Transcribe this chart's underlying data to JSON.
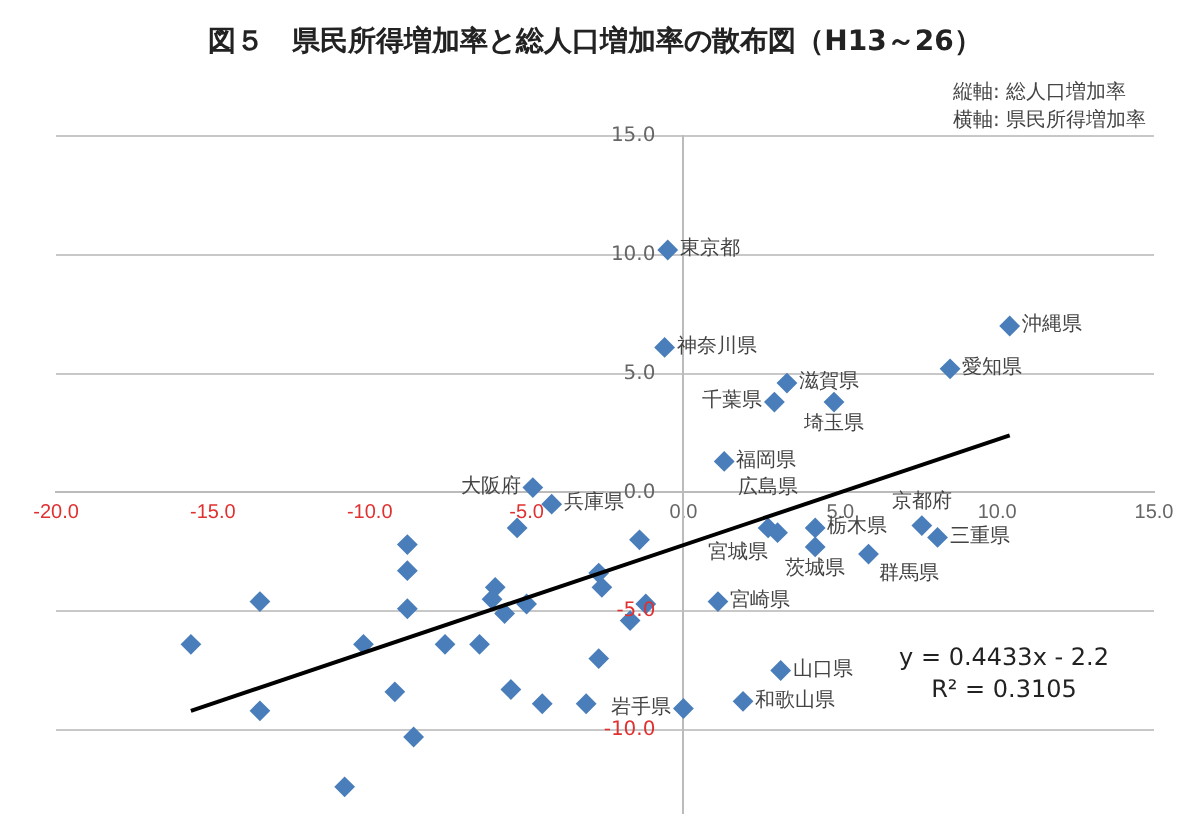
{
  "chart_data": {
    "type": "scatter",
    "title": "図５　県民所得増加率と総人口増加率の散布図（H13～26）",
    "ylabel": "縦軸: 総人口増加率",
    "xlabel": "横軸: 県民所得増加率",
    "xlim": [
      -20,
      15
    ],
    "ylim": [
      -13.5,
      15
    ],
    "xticks": [
      {
        "value": -20,
        "label": "-20.0"
      },
      {
        "value": -15,
        "label": "-15.0"
      },
      {
        "value": -10,
        "label": "-10.0"
      },
      {
        "value": -5,
        "label": "-5.0"
      },
      {
        "value": 0,
        "label": "0.0"
      },
      {
        "value": 5,
        "label": "5.0"
      },
      {
        "value": 10,
        "label": "10.0"
      },
      {
        "value": 15,
        "label": "15.0"
      }
    ],
    "yticks": [
      {
        "value": -10,
        "label": "-10.0"
      },
      {
        "value": -5,
        "label": "-5.0"
      },
      {
        "value": 0,
        "label": "0.0"
      },
      {
        "value": 5,
        "label": "5.0"
      },
      {
        "value": 10,
        "label": "10.0"
      },
      {
        "value": 15,
        "label": "15.0"
      }
    ],
    "grid": "y",
    "legend": false,
    "marker": "diamond",
    "series": [
      {
        "color": "#4a7ebb",
        "x": [
          -0.5,
          -0.6,
          3.3,
          2.9,
          4.8,
          1.3,
          8.5,
          10.4,
          -4.8,
          -4.2,
          -5.3,
          -8.8,
          -8.8,
          -13.5,
          -8.8,
          -6.0,
          -6.1,
          -5.7,
          -5.0,
          -15.7,
          -10.2,
          -7.6,
          -6.5,
          -9.2,
          -5.5,
          -4.5,
          -3.1,
          -13.5,
          -8.6,
          -10.8,
          -1.4,
          2.7,
          3.0,
          4.2,
          4.2,
          5.9,
          7.6,
          8.1,
          1.1,
          3.1,
          1.9,
          0.0,
          -2.6,
          -2.7,
          -1.2,
          -1.7,
          -2.7
        ],
        "values": [
          10.2,
          6.1,
          4.6,
          3.8,
          3.8,
          1.3,
          5.2,
          7.0,
          0.2,
          -0.5,
          -1.5,
          -2.2,
          -3.3,
          -4.6,
          -4.9,
          -4.0,
          -4.5,
          -5.1,
          -4.7,
          -6.4,
          -6.4,
          -6.4,
          -6.4,
          -8.4,
          -8.3,
          -8.9,
          -8.9,
          -9.2,
          -10.3,
          -12.4,
          -2.0,
          -1.5,
          -1.7,
          -1.5,
          -2.3,
          -2.6,
          -1.4,
          -1.9,
          -4.6,
          -7.5,
          -8.8,
          -9.1,
          -4.0,
          -3.4,
          -4.7,
          -5.4,
          -7.0
        ]
      },
      {
        "type": "line",
        "color": "#000000",
        "marker": "none",
        "x": [
          -15.7,
          10.4
        ],
        "values": [
          -9.2,
          2.4
        ]
      }
    ],
    "annotations": [
      {
        "text": "東京都",
        "x": -0.5,
        "y": 10.2
      },
      {
        "text": "神奈川県",
        "x": -0.6,
        "y": 6.1
      },
      {
        "text": "滋賀県",
        "x": 3.3,
        "y": 4.6
      },
      {
        "text": "千葉県",
        "x": 2.9,
        "y": 3.8
      },
      {
        "text": "埼玉県",
        "x": 4.8,
        "y": 3.8
      },
      {
        "text": "福岡県",
        "x": 1.3,
        "y": 1.3
      },
      {
        "text": "愛知県",
        "x": 8.5,
        "y": 5.2
      },
      {
        "text": "沖縄県",
        "x": 10.4,
        "y": 7.0
      },
      {
        "text": "大阪府",
        "x": -4.8,
        "y": 0.2
      },
      {
        "text": "兵庫県",
        "x": -4.2,
        "y": -0.5
      },
      {
        "text": "広島県",
        "x": 2.7,
        "y": -1.5
      },
      {
        "text": "宮城県",
        "x": 3.0,
        "y": -1.7
      },
      {
        "text": "栃木県",
        "x": 4.2,
        "y": -1.5
      },
      {
        "text": "茨城県",
        "x": 4.2,
        "y": -2.3
      },
      {
        "text": "群馬県",
        "x": 5.9,
        "y": -2.6
      },
      {
        "text": "京都府",
        "x": 7.6,
        "y": -1.4
      },
      {
        "text": "三重県",
        "x": 8.1,
        "y": -1.9
      },
      {
        "text": "宮崎県",
        "x": 1.1,
        "y": -4.6
      },
      {
        "text": "山口県",
        "x": 3.1,
        "y": -7.5
      },
      {
        "text": "和歌山県",
        "x": 1.9,
        "y": -8.8
      },
      {
        "text": "岩手県",
        "x": 0.0,
        "y": -9.1
      },
      "y = 0.4433x - 2.2",
      "R² = 0.3105"
    ]
  }
}
